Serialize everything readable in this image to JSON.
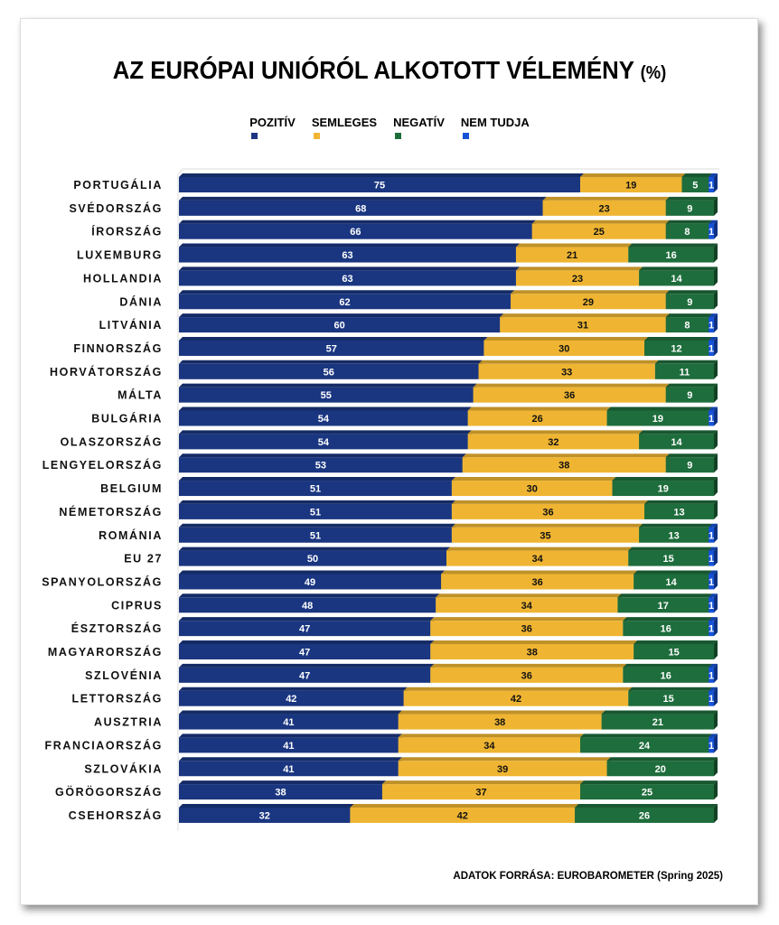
{
  "chart_data": {
    "type": "bar",
    "orientation": "horizontal",
    "stacked": true,
    "title": "AZ EURÓPAI UNIÓRÓL ALKOTOTT VÉLEMÉNY",
    "title_suffix": "(%)",
    "legend_position": "top",
    "xlim": [
      0,
      100
    ],
    "grid": false,
    "categories": [
      "PORTUGÁLIA",
      "SVÉDORSZÁG",
      "ÍRORSZÁG",
      "LUXEMBURG",
      "HOLLANDIA",
      "DÁNIA",
      "LITVÁNIA",
      "FINNORSZÁG",
      "HORVÁTORSZÁG",
      "MÁLTA",
      "BULGÁRIA",
      "OLASZORSZÁG",
      "LENGYELORSZÁG",
      "BELGIUM",
      "NÉMETORSZÁG",
      "ROMÁNIA",
      "EU 27",
      "SPANYOLORSZÁG",
      "CIPRUS",
      "ÉSZTORSZÁG",
      "MAGYARORSZÁG",
      "SZLOVÉNIA",
      "LETTORSZÁG",
      "AUSZTRIA",
      "FRANCIAORSZÁG",
      "SZLOVÁKIA",
      "GÖRÖGORSZÁG",
      "CSEHORSZÁG"
    ],
    "series": [
      {
        "name": "POZITÍV",
        "color": "#1a3680",
        "values": [
          75,
          68,
          66,
          63,
          63,
          62,
          60,
          57,
          56,
          55,
          54,
          54,
          53,
          51,
          51,
          51,
          50,
          49,
          48,
          47,
          47,
          47,
          42,
          41,
          41,
          41,
          38,
          32
        ]
      },
      {
        "name": "SEMLEGES",
        "color": "#efb532",
        "values": [
          19,
          23,
          25,
          21,
          23,
          29,
          31,
          30,
          33,
          36,
          26,
          32,
          38,
          30,
          36,
          35,
          34,
          36,
          34,
          36,
          38,
          36,
          42,
          38,
          34,
          39,
          37,
          42
        ]
      },
      {
        "name": "NEGATÍV",
        "color": "#1e6d3c",
        "values": [
          5,
          9,
          8,
          16,
          14,
          9,
          8,
          12,
          11,
          9,
          19,
          14,
          9,
          19,
          13,
          13,
          15,
          14,
          17,
          16,
          15,
          16,
          15,
          21,
          24,
          20,
          25,
          26
        ]
      },
      {
        "name": "NEM TUDJA",
        "color": "#1552d6",
        "values": [
          1,
          null,
          1,
          null,
          null,
          null,
          1,
          1,
          null,
          null,
          1,
          null,
          null,
          null,
          null,
          1,
          1,
          1,
          1,
          1,
          null,
          1,
          1,
          null,
          1,
          null,
          null,
          null
        ]
      }
    ],
    "source": "ADATOK FORRÁSA: EUROBAROMETER (Spring 2025)"
  }
}
